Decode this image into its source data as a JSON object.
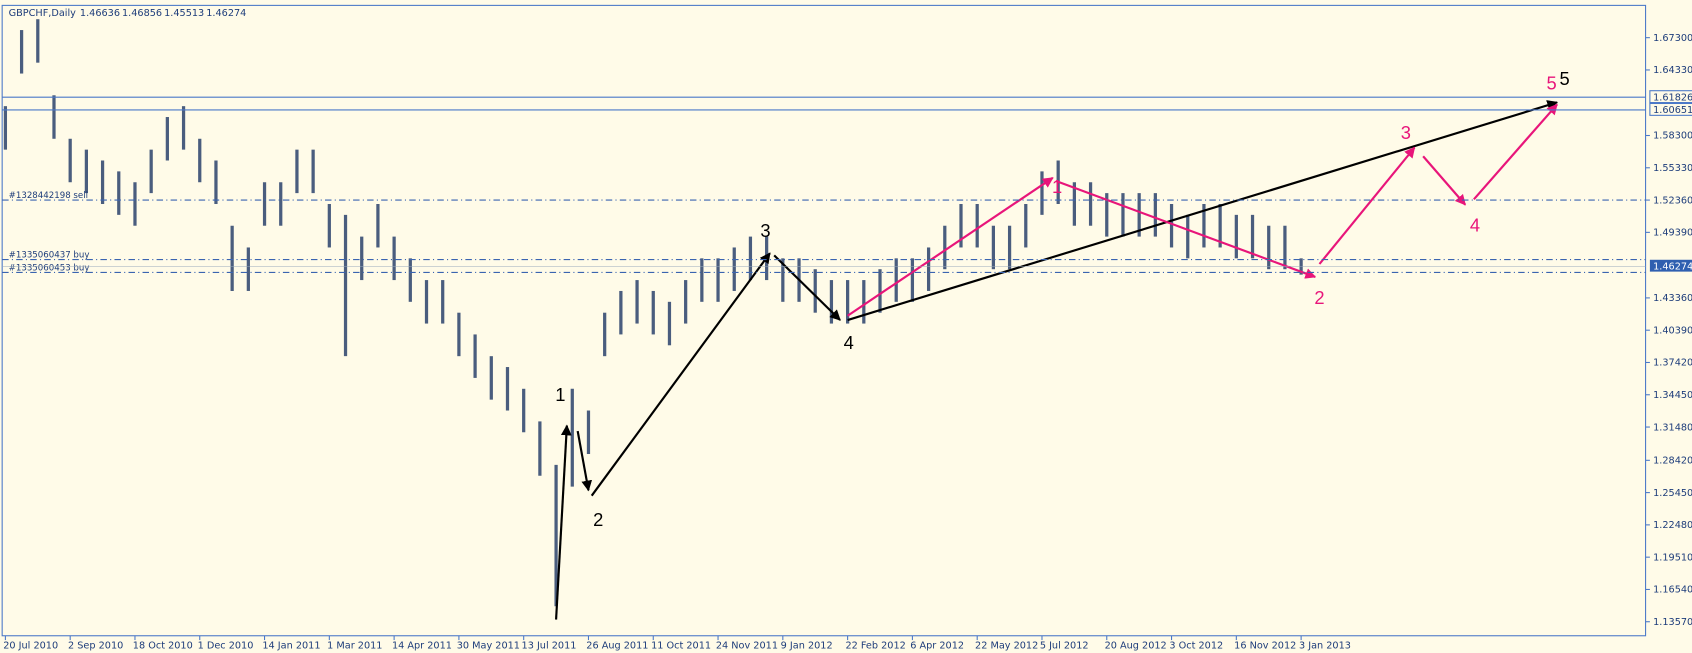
{
  "chart_data": {
    "type": "ohlc",
    "title": "GBPCHF,Daily",
    "header_quote": {
      "open": 1.46636,
      "high": 1.46856,
      "low": 1.45513,
      "close": 1.46274
    },
    "color": "#4a5d7e",
    "categories": [
      "20 Jul 2010",
      null,
      null,
      null,
      "2 Sep 2010",
      null,
      null,
      null,
      "18 Oct 2010",
      null,
      null,
      null,
      "1 Dec 2010",
      null,
      null,
      null,
      "14 Jan 2011",
      null,
      null,
      null,
      "1 Mar 2011",
      null,
      null,
      null,
      "14 Apr 2011",
      null,
      null,
      null,
      "30 May 2011",
      null,
      null,
      null,
      "13 Jul 2011",
      null,
      null,
      null,
      "26 Aug 2011",
      null,
      null,
      null,
      "11 Oct 2011",
      null,
      null,
      null,
      "24 Nov 2011",
      null,
      null,
      null,
      "9 Jan 2012",
      null,
      null,
      null,
      "22 Feb 2012",
      null,
      null,
      null,
      "6 Apr 2012",
      null,
      null,
      null,
      "22 May 2012",
      null,
      null,
      null,
      "5 Jul 2012",
      null,
      null,
      null,
      "20 Aug 2012",
      null,
      null,
      null,
      "3 Oct 2012",
      null,
      null,
      null,
      "16 Nov 2012",
      null,
      null,
      null,
      "3 Jan 2013"
    ],
    "high": [
      1.61,
      1.68,
      1.69,
      1.62,
      1.58,
      1.57,
      1.56,
      1.55,
      1.54,
      1.57,
      1.6,
      1.61,
      1.58,
      1.56,
      1.5,
      1.48,
      1.54,
      1.54,
      1.57,
      1.57,
      1.52,
      1.51,
      1.49,
      1.52,
      1.49,
      1.47,
      1.45,
      1.45,
      1.42,
      1.4,
      1.38,
      1.37,
      1.35,
      1.32,
      1.28,
      1.35,
      1.33,
      1.42,
      1.44,
      1.45,
      1.44,
      1.43,
      1.45,
      1.47,
      1.47,
      1.48,
      1.49,
      1.49,
      1.47,
      1.47,
      1.46,
      1.45,
      1.45,
      1.45,
      1.46,
      1.47,
      1.47,
      1.48,
      1.5,
      1.52,
      1.52,
      1.5,
      1.5,
      1.52,
      1.55,
      1.56,
      1.54,
      1.54,
      1.53,
      1.53,
      1.53,
      1.53,
      1.52,
      1.51,
      1.52,
      1.52,
      1.51,
      1.51,
      1.5,
      1.5,
      1.47
    ],
    "low": [
      1.57,
      1.64,
      1.65,
      1.58,
      1.54,
      1.53,
      1.52,
      1.51,
      1.5,
      1.53,
      1.56,
      1.57,
      1.54,
      1.52,
      1.44,
      1.44,
      1.5,
      1.5,
      1.53,
      1.53,
      1.48,
      1.38,
      1.45,
      1.48,
      1.45,
      1.43,
      1.41,
      1.41,
      1.38,
      1.36,
      1.34,
      1.33,
      1.31,
      1.27,
      1.15,
      1.26,
      1.29,
      1.38,
      1.4,
      1.41,
      1.4,
      1.39,
      1.41,
      1.43,
      1.43,
      1.44,
      1.45,
      1.45,
      1.43,
      1.43,
      1.42,
      1.41,
      1.41,
      1.41,
      1.42,
      1.43,
      1.43,
      1.44,
      1.46,
      1.48,
      1.48,
      1.46,
      1.46,
      1.48,
      1.51,
      1.52,
      1.5,
      1.5,
      1.49,
      1.49,
      1.49,
      1.49,
      1.48,
      1.47,
      1.48,
      1.48,
      1.47,
      1.47,
      1.46,
      1.46,
      1.455
    ],
    "ylim": [
      1.1228,
      1.7027
    ],
    "yticks": [
      {
        "value": 1.673,
        "label": "1.67300"
      },
      {
        "value": 1.6433,
        "label": "1.64330"
      },
      {
        "value": 1.583,
        "label": "1.58300"
      },
      {
        "value": 1.5533,
        "label": "1.55330"
      },
      {
        "value": 1.5236,
        "label": "1.52360"
      },
      {
        "value": 1.4939,
        "label": "1.49390"
      },
      {
        "value": 1.4336,
        "label": "1.43360"
      },
      {
        "value": 1.4039,
        "label": "1.40390"
      },
      {
        "value": 1.3742,
        "label": "1.37420"
      },
      {
        "value": 1.3445,
        "label": "1.34450"
      },
      {
        "value": 1.3148,
        "label": "1.31480"
      },
      {
        "value": 1.2842,
        "label": "1.28420"
      },
      {
        "value": 1.2545,
        "label": "1.25450"
      },
      {
        "value": 1.2248,
        "label": "1.22480"
      },
      {
        "value": 1.1951,
        "label": "1.19510"
      },
      {
        "value": 1.1654,
        "label": "1.16540"
      },
      {
        "value": 1.1357,
        "label": "1.13570"
      }
    ],
    "levels": [
      1.61826,
      1.60651
    ],
    "current_price": 1.46274,
    "orders": [
      {
        "label": "#1328442198 sell",
        "value": 1.5236
      },
      {
        "label": "#1335060437 buy",
        "value": 1.4689
      },
      {
        "label": "#1335060453 buy",
        "value": 1.457
      }
    ],
    "waves": {
      "black": [
        "1",
        "2",
        "3",
        "4",
        "5"
      ],
      "pink": [
        "1",
        "2",
        "3",
        "4",
        "5"
      ]
    }
  }
}
